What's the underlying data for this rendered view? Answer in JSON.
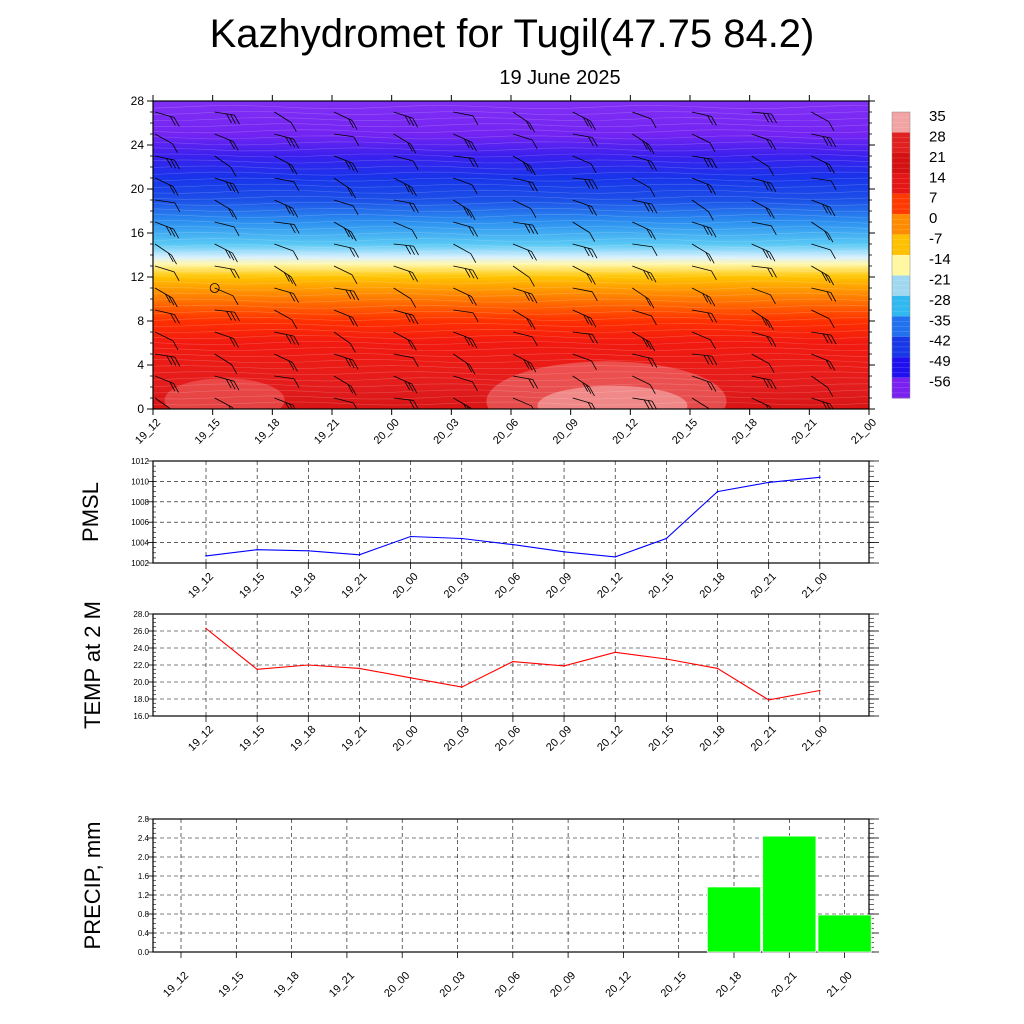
{
  "title": "Kazhydromet for Tugil(47.75 84.2)",
  "subtitle": "19 June 2025",
  "time_labels": [
    "19_12",
    "19_15",
    "19_18",
    "19_21",
    "20_00",
    "20_03",
    "20_06",
    "20_09",
    "20_12",
    "20_15",
    "20_18",
    "20_21",
    "21_00"
  ],
  "chart_data": [
    {
      "type": "heatmap",
      "name": "cross-section",
      "x": [
        "19_12",
        "19_15",
        "19_18",
        "19_21",
        "20_00",
        "20_03",
        "20_06",
        "20_09",
        "20_12",
        "20_15",
        "20_18",
        "20_21",
        "21_00"
      ],
      "ylim": [
        0,
        28
      ],
      "yticks": [
        0,
        4,
        8,
        12,
        16,
        20,
        24,
        28
      ],
      "colorbar": {
        "labels": [
          35,
          28,
          21,
          14,
          7,
          0,
          -7,
          -14,
          -21,
          -28,
          -35,
          -42,
          -49,
          -56
        ],
        "colors": [
          "#f2a3a3",
          "#e12020",
          "#d41010",
          "#e51616",
          "#ff3a00",
          "#ff8c00",
          "#ffc000",
          "#fff8a0",
          "#a0d8f0",
          "#30b8f0",
          "#2070f0",
          "#1838e8",
          "#2010f0",
          "#7a20f0"
        ]
      },
      "contour_bands": [
        {
          "y": 0,
          "color": "#d81414"
        },
        {
          "y": 2,
          "color": "#e31d1d"
        },
        {
          "y": 6,
          "color": "#f21a10"
        },
        {
          "y": 8,
          "color": "#ff3000"
        },
        {
          "y": 10,
          "color": "#ff7800"
        },
        {
          "y": 12,
          "color": "#ffc400"
        },
        {
          "y": 13.2,
          "color": "#fff8b0"
        },
        {
          "y": 13.8,
          "color": "#d8f0ff"
        },
        {
          "y": 15,
          "color": "#58c8f4"
        },
        {
          "y": 17,
          "color": "#2c90f0"
        },
        {
          "y": 19,
          "color": "#1c50e8"
        },
        {
          "y": 21,
          "color": "#1834ea"
        },
        {
          "y": 23,
          "color": "#3a20ee"
        },
        {
          "y": 25,
          "color": "#7424f2"
        },
        {
          "y": 28,
          "color": "#8030f4"
        }
      ]
    },
    {
      "type": "line",
      "name": "pmsl",
      "ylabel": "PMSL",
      "x": [
        "19_12",
        "19_15",
        "19_18",
        "19_21",
        "20_00",
        "20_03",
        "20_06",
        "20_09",
        "20_12",
        "20_15",
        "20_18",
        "20_21",
        "21_00"
      ],
      "values": [
        1002.7,
        1003.3,
        1003.2,
        1002.8,
        1004.6,
        1004.4,
        1003.8,
        1003.1,
        1002.6,
        1004.4,
        1009.0,
        1009.9,
        1010.4
      ],
      "ylim": [
        1002,
        1012
      ],
      "yticks": [
        "1002",
        "1004",
        "1006",
        "1008",
        "1010",
        "1012"
      ],
      "color": "#0000ff"
    },
    {
      "type": "line",
      "name": "temp2m",
      "ylabel": "TEMP at 2 M",
      "x": [
        "19_12",
        "19_15",
        "19_18",
        "19_21",
        "20_00",
        "20_03",
        "20_06",
        "20_09",
        "20_12",
        "20_15",
        "20_18",
        "20_21",
        "21_00"
      ],
      "values": [
        26.3,
        21.5,
        22.0,
        21.6,
        20.5,
        19.4,
        22.4,
        21.9,
        23.5,
        22.7,
        21.6,
        17.9,
        19.0
      ],
      "ylim": [
        16.0,
        28.0
      ],
      "yticks": [
        "16.0",
        "18.0",
        "20.0",
        "22.0",
        "24.0",
        "26.0",
        "28.0"
      ],
      "color": "#ff0000"
    },
    {
      "type": "bar",
      "name": "precip",
      "ylabel": "PRECIP, mm",
      "categories": [
        "19_12",
        "19_15",
        "19_18",
        "19_21",
        "20_00",
        "20_03",
        "20_06",
        "20_09",
        "20_12",
        "20_15",
        "20_18",
        "20_21",
        "21_00"
      ],
      "values": [
        0,
        0,
        0,
        0,
        0,
        0,
        0,
        0,
        0,
        0,
        1.37,
        2.44,
        0.78
      ],
      "ylim": [
        0.0,
        2.8
      ],
      "yticks": [
        "0.0",
        "0.4",
        "0.8",
        "1.2",
        "1.6",
        "2.0",
        "2.4",
        "2.8"
      ],
      "color": "#00ff00"
    }
  ]
}
